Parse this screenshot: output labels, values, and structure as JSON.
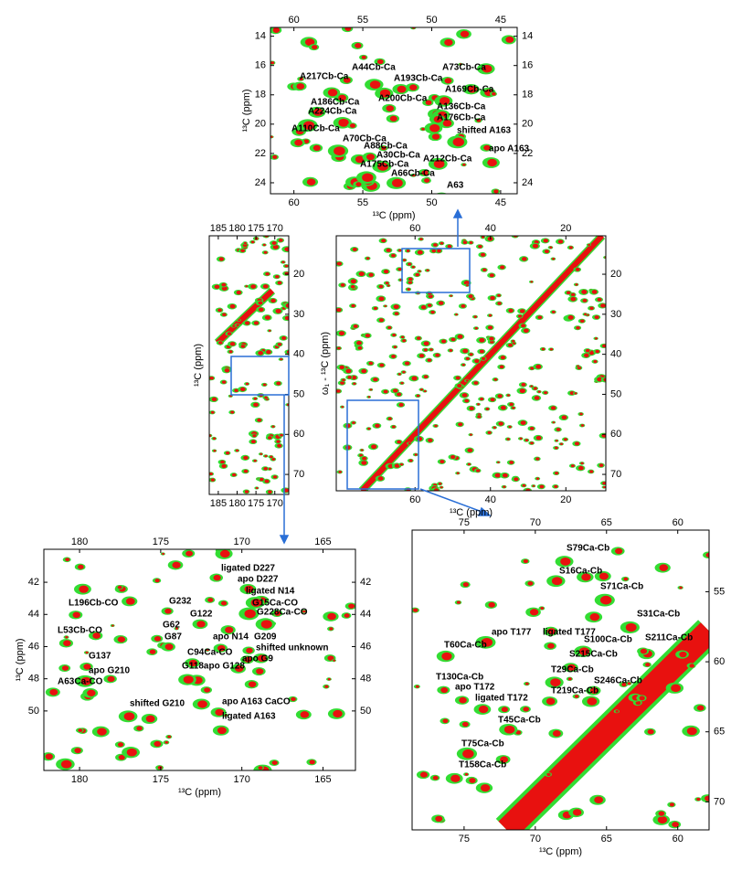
{
  "panels": [
    {
      "xlim": [
        61.7,
        43.8
      ],
      "ylim": [
        13.4,
        24.75
      ],
      "x_axis": {
        "label": "¹³C (ppm)",
        "ticks": [
          60,
          55,
          50,
          45
        ]
      },
      "y_axis": {
        "label": "¹³C (ppm)",
        "ticks": [
          14,
          16,
          18,
          20,
          22,
          24
        ]
      },
      "annotations": [
        "A73Cb-Ca",
        "A44Cb-Ca",
        "A217Cb-Ca",
        "A193Cb-Ca",
        "A169Cb-Ca",
        "A186Cb-Ca",
        "A200Cb-Ca",
        "A224Cb-Ca",
        "A136Cb-Ca",
        "A176Cb-Ca",
        "A110Cb-Ca",
        "shifted A163",
        "A70Cb-Ca",
        "A88Cb-Ca",
        "A30Cb-Ca",
        "apo A163",
        "A175Cb-Ca",
        "A212Cb-Ca",
        "A66Cb-Ca",
        "A63"
      ]
    },
    {
      "xlim": [
        187.4,
        166.3
      ],
      "ylim": [
        10.4,
        75
      ],
      "x_axis": {
        "ticks": [
          185,
          180,
          175,
          170
        ]
      },
      "y_axis": {
        "label": "¹³C (ppm)",
        "ticks": [
          20,
          30,
          40,
          50,
          60,
          70
        ]
      },
      "annotations": []
    },
    {
      "xlim": [
        80.9,
        9.4
      ],
      "ylim": [
        10.4,
        74.1
      ],
      "x_axis": {
        "label": "¹³C (ppm)",
        "ticks": [
          60,
          40,
          20
        ]
      },
      "y_axis": {
        "label": "ω₁ - ¹³C (ppm)",
        "ticks": [
          20,
          30,
          40,
          50,
          60,
          70
        ]
      },
      "annotations": []
    },
    {
      "xlim": [
        182.2,
        163.0
      ],
      "ylim": [
        39.95,
        53.7
      ],
      "x_axis": {
        "label": "¹³C (ppm)",
        "ticks": [
          180,
          175,
          170,
          165
        ]
      },
      "y_axis": {
        "label": "¹³C (ppm)",
        "ticks": [
          42,
          44,
          46,
          48,
          50
        ]
      },
      "annotations": [
        "ligated D227",
        "apo D227",
        "ligated N14",
        "G15Ca-CO",
        "G232",
        "G228Ca-CO",
        "L196Cb-CO",
        "G122",
        "G62",
        "G87",
        "apo N14",
        "L53Cb-CO",
        "G209",
        "shifted unknown",
        "G137",
        "C94Ca-CO",
        "apo G9",
        "G118apo G128",
        "apo G210",
        "A63Ca-CO",
        "shifted G210",
        "apo A163 CaCO",
        "ligated A163"
      ]
    },
    {
      "xlim": [
        78.65,
        57.8
      ],
      "ylim": [
        50.6,
        72.0
      ],
      "x_axis": {
        "label": "¹³C (ppm)",
        "ticks": [
          75,
          70,
          65,
          60
        ]
      },
      "y_axis": {
        "ticks": [
          55,
          60,
          65,
          70
        ]
      },
      "annotations": [
        "S79Ca-Cb",
        "S16Ca-Cb",
        "S71Ca-Cb",
        "S31Ca-Cb",
        "apo T177",
        "ligated T177",
        "S100Ca-Cb",
        "S211Ca-Cb",
        "T60Ca-Cb",
        "S215Ca-Cb",
        "T29Ca-Cb",
        "T130Ca-Cb",
        "apo T172",
        "S246Ca-Cb",
        "ligated T172",
        "T219Ca-Cb",
        "T45Ca-Cb",
        "T75Ca-Cb",
        "T158Ca-Cb"
      ]
    }
  ]
}
